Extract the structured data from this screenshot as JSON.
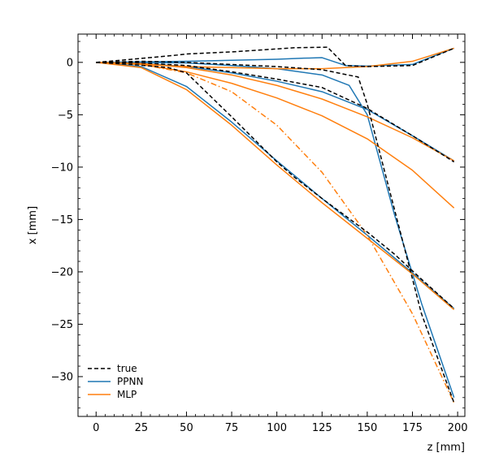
{
  "chart_data": {
    "type": "line",
    "title": "",
    "xlabel": "z [mm]",
    "ylabel": "x [mm]",
    "xlim": [
      -10,
      204
    ],
    "ylim": [
      -33.8,
      2.7
    ],
    "xticks": [
      0,
      25,
      50,
      75,
      100,
      125,
      150,
      175,
      200
    ],
    "yticks": [
      0,
      -5,
      -10,
      -15,
      -20,
      -25,
      -30
    ],
    "grid": false,
    "legend": {
      "placement": "bottom-left",
      "entries": [
        {
          "label": "true",
          "color": "#000000",
          "style": "dashed"
        },
        {
          "label": "PPNN",
          "color": "#1f77b4",
          "style": "solid"
        },
        {
          "label": "MLP",
          "color": "#ff7f0e",
          "style": "solid"
        }
      ]
    },
    "series": [
      {
        "name": "true",
        "color": "#000000",
        "dash": "dashed",
        "x": [
          0,
          20,
          45,
          50,
          75,
          110,
          128,
          138,
          150,
          175,
          198
        ],
        "y": [
          0,
          0.3,
          0.7,
          0.8,
          1.0,
          1.4,
          1.45,
          -0.3,
          -0.4,
          -0.3,
          1.35
        ]
      },
      {
        "name": "true",
        "color": "#000000",
        "dash": "dashed",
        "x": [
          0,
          25,
          50,
          75,
          100,
          125,
          145,
          150,
          165,
          180,
          198
        ],
        "y": [
          0,
          0.1,
          0.0,
          -0.2,
          -0.4,
          -0.7,
          -1.4,
          -4.0,
          -14.0,
          -24.0,
          -32.5
        ]
      },
      {
        "name": "true",
        "color": "#000000",
        "dash": "dashed",
        "x": [
          0,
          25,
          50,
          75,
          100,
          125,
          150,
          175,
          198
        ],
        "y": [
          0,
          -0.05,
          -0.3,
          -0.9,
          -1.6,
          -2.4,
          -4.4,
          -7.0,
          -9.5
        ]
      },
      {
        "name": "true",
        "color": "#000000",
        "dash": "dashed",
        "x": [
          0,
          20,
          40,
          50,
          75,
          100,
          110,
          125,
          150,
          165,
          180,
          198
        ],
        "y": [
          0,
          -0.2,
          -0.5,
          -1.0,
          -5.2,
          -9.5,
          -11.0,
          -13.0,
          -16.2,
          -18.3,
          -20.7,
          -23.5
        ]
      },
      {
        "name": "PPNN",
        "color": "#1f77b4",
        "dash": "solid",
        "x": [
          0,
          25,
          50,
          75,
          100,
          115,
          125,
          138,
          150,
          175,
          198
        ],
        "y": [
          0,
          0.05,
          0.1,
          0.2,
          0.3,
          0.4,
          0.45,
          -0.3,
          -0.35,
          -0.2,
          1.35
        ]
      },
      {
        "name": "PPNN",
        "color": "#1f77b4",
        "dash": "solid",
        "x": [
          0,
          25,
          50,
          75,
          100,
          125,
          140,
          150,
          165,
          180,
          198
        ],
        "y": [
          0,
          0.0,
          -0.05,
          -0.3,
          -0.6,
          -1.2,
          -2.2,
          -5.0,
          -14.5,
          -23.0,
          -32.0
        ]
      },
      {
        "name": "PPNN",
        "color": "#1f77b4",
        "dash": "solid",
        "x": [
          0,
          25,
          50,
          75,
          100,
          125,
          150,
          175,
          198
        ],
        "y": [
          0,
          -0.1,
          -0.4,
          -1.0,
          -1.8,
          -2.8,
          -4.5,
          -7.0,
          -9.4
        ]
      },
      {
        "name": "PPNN",
        "color": "#1f77b4",
        "dash": "solid",
        "x": [
          0,
          25,
          50,
          75,
          100,
          125,
          150,
          175,
          198
        ],
        "y": [
          0,
          -0.4,
          -2.3,
          -5.7,
          -9.4,
          -13.0,
          -16.5,
          -20.1,
          -23.5
        ]
      },
      {
        "name": "MLP",
        "color": "#ff7f0e",
        "dash": "solid",
        "x": [
          0,
          25,
          50,
          75,
          100,
          125,
          150,
          175,
          198
        ],
        "y": [
          0,
          -0.2,
          -0.4,
          -0.5,
          -0.6,
          -0.6,
          -0.4,
          0.1,
          1.35
        ]
      },
      {
        "name": "MLP",
        "color": "#ff7f0e",
        "dash": "solid",
        "x": [
          0,
          25,
          50,
          75,
          100,
          125,
          150,
          175,
          198
        ],
        "y": [
          0,
          -0.1,
          -0.5,
          -1.2,
          -2.2,
          -3.5,
          -5.2,
          -7.2,
          -9.4
        ]
      },
      {
        "name": "MLP",
        "color": "#ff7f0e",
        "dash": "solid",
        "x": [
          0,
          25,
          50,
          75,
          100,
          125,
          150,
          175,
          198
        ],
        "y": [
          0,
          -0.2,
          -0.9,
          -2.0,
          -3.4,
          -5.1,
          -7.3,
          -10.3,
          -13.9
        ]
      },
      {
        "name": "MLP",
        "color": "#ff7f0e",
        "dash": "solid",
        "x": [
          0,
          25,
          50,
          75,
          100,
          125,
          150,
          175,
          198
        ],
        "y": [
          0,
          -0.5,
          -2.6,
          -6.0,
          -9.8,
          -13.4,
          -16.8,
          -20.2,
          -23.6
        ]
      },
      {
        "name": "MLP",
        "color": "#ff7f0e",
        "dash": "dashdot",
        "x": [
          0,
          25,
          50,
          75,
          100,
          125,
          150,
          175,
          198
        ],
        "y": [
          0,
          -0.2,
          -1.0,
          -2.8,
          -6.0,
          -10.5,
          -16.5,
          -24.0,
          -32.5
        ]
      }
    ]
  }
}
